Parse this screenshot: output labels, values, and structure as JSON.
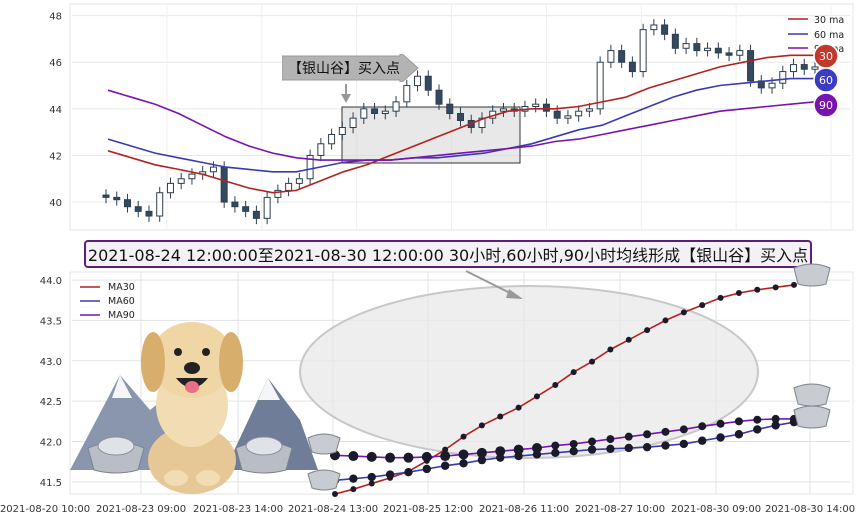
{
  "top_chart": {
    "legend": [
      {
        "label": "30 ma",
        "color": "#b22222"
      },
      {
        "label": "60 ma",
        "color": "#3a3ab0"
      },
      {
        "label": "90 ma",
        "color": "#7a12b0"
      }
    ],
    "badges": [
      "30",
      "60",
      "90"
    ],
    "callout": "【银山谷】买入点"
  },
  "banner": "2021-08-24 12:00:00至2021-08-30 12:00:00 30小时,60小时,90小时均线形成【银山谷】买入点",
  "chart_data": [
    {
      "type": "candlestick",
      "ylim": [
        38.8,
        48.5
      ],
      "yticks": [
        40,
        42,
        44,
        46,
        48
      ],
      "legend_position": "top-right",
      "grid": true,
      "candles_close": [
        40.2,
        40.1,
        39.8,
        39.6,
        39.4,
        40.4,
        40.8,
        41.0,
        41.2,
        41.3,
        41.5,
        40.0,
        39.8,
        39.6,
        39.3,
        40.2,
        40.5,
        40.8,
        41.0,
        42.0,
        42.5,
        42.9,
        43.2,
        43.6,
        44.0,
        43.8,
        43.9,
        44.3,
        45.0,
        45.4,
        44.8,
        44.2,
        43.8,
        43.5,
        43.2,
        43.6,
        43.9,
        44.0,
        43.9,
        44.1,
        44.2,
        43.9,
        43.6,
        43.7,
        43.9,
        44.0,
        46.0,
        46.5,
        46.0,
        45.6,
        47.4,
        47.6,
        47.2,
        46.6,
        46.8,
        46.5,
        46.6,
        46.4,
        46.3,
        46.5,
        45.2,
        44.9,
        45.1,
        45.6,
        45.9,
        45.7,
        45.8
      ],
      "series": [
        {
          "name": "30 ma",
          "values": [
            42.2,
            41.9,
            41.6,
            41.4,
            41.2,
            40.9,
            40.6,
            40.4,
            40.5,
            40.9,
            41.3,
            41.6,
            42.0,
            42.4,
            42.8,
            43.2,
            43.6,
            43.9,
            44.0,
            44.0,
            44.1,
            44.3,
            44.5,
            44.9,
            45.2,
            45.5,
            45.8,
            46.0,
            46.2,
            46.3,
            46.3
          ]
        },
        {
          "name": "60 ma",
          "values": [
            42.7,
            42.4,
            42.1,
            41.9,
            41.7,
            41.5,
            41.4,
            41.3,
            41.3,
            41.5,
            41.7,
            41.8,
            41.8,
            41.9,
            41.9,
            42.0,
            42.1,
            42.3,
            42.5,
            42.8,
            43.1,
            43.3,
            43.7,
            44.1,
            44.5,
            44.8,
            45.0,
            45.1,
            45.2,
            45.3,
            45.3
          ]
        },
        {
          "name": "90 ma",
          "values": [
            44.8,
            44.5,
            44.2,
            43.8,
            43.3,
            42.8,
            42.4,
            42.1,
            41.9,
            41.8,
            41.8,
            41.8,
            41.8,
            41.9,
            42.0,
            42.1,
            42.2,
            42.3,
            42.4,
            42.6,
            42.7,
            42.9,
            43.1,
            43.3,
            43.5,
            43.7,
            43.9,
            44.0,
            44.1,
            44.2,
            44.3
          ]
        }
      ]
    },
    {
      "type": "line",
      "ylim": [
        41.35,
        44.1
      ],
      "yticks": [
        41.5,
        42.0,
        42.5,
        43.0,
        43.5,
        44.0
      ],
      "x_tick_labels": [
        "2021-08-20 10:00",
        "2021-08-23 09:00",
        "2021-08-23 14:00",
        "2021-08-24 13:00",
        "2021-08-25 12:00",
        "2021-08-26 11:00",
        "2021-08-27 10:00",
        "2021-08-30 09:00",
        "2021-08-30 14:00"
      ],
      "legend_position": "top-left",
      "grid": true,
      "series": [
        {
          "name": "MA30",
          "color": "#b22222",
          "values": [
            41.35,
            41.41,
            41.48,
            41.55,
            41.63,
            41.76,
            41.9,
            42.06,
            42.2,
            42.31,
            42.42,
            42.56,
            42.7,
            42.86,
            42.99,
            43.14,
            43.26,
            43.38,
            43.5,
            43.6,
            43.69,
            43.78,
            43.84,
            43.88,
            43.91,
            43.94
          ]
        },
        {
          "name": "MA60",
          "color": "#3a3ab0",
          "values": [
            41.52,
            41.54,
            41.56,
            41.59,
            41.62,
            41.66,
            41.7,
            41.73,
            41.77,
            41.8,
            41.82,
            41.84,
            41.86,
            41.88,
            41.9,
            41.91,
            41.92,
            41.93,
            41.95,
            41.97,
            42.01,
            42.05,
            42.09,
            42.15,
            42.2,
            42.24
          ]
        },
        {
          "name": "MA90",
          "color": "#7a12b0",
          "values": [
            41.83,
            41.82,
            41.81,
            41.8,
            41.8,
            41.81,
            41.82,
            41.84,
            41.86,
            41.88,
            41.9,
            41.92,
            41.95,
            41.97,
            42.0,
            42.03,
            42.06,
            42.09,
            42.12,
            42.15,
            42.19,
            42.22,
            42.25,
            42.27,
            42.28,
            42.28
          ]
        }
      ]
    }
  ]
}
